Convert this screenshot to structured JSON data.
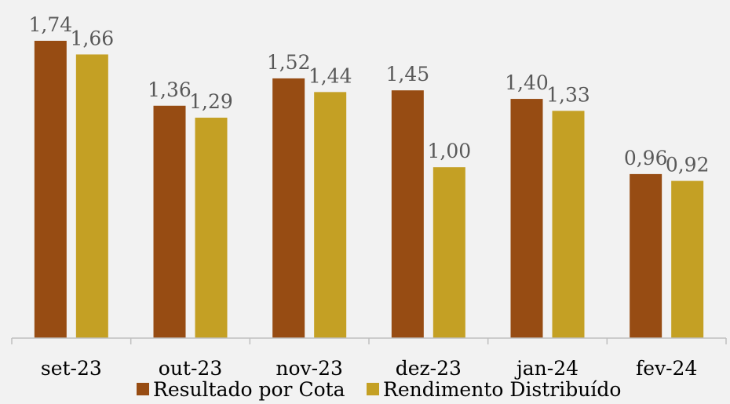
{
  "chart_data": {
    "type": "bar",
    "categories": [
      "set-23",
      "out-23",
      "nov-23",
      "dez-23",
      "jan-24",
      "fev-24"
    ],
    "series": [
      {
        "name": "Resultado por Cota",
        "values": [
          1.74,
          1.36,
          1.52,
          1.45,
          1.4,
          0.96
        ],
        "labels": [
          "1,74",
          "1,36",
          "1,52",
          "1,45",
          "1,40",
          "0,96"
        ],
        "color": "#974c13"
      },
      {
        "name": "Rendimento Distribuído",
        "values": [
          1.66,
          1.29,
          1.44,
          1.0,
          1.33,
          0.92
        ],
        "labels": [
          "1,66",
          "1,29",
          "1,44",
          "1,00",
          "1,33",
          "0,92"
        ],
        "color": "#c4a024"
      }
    ],
    "ylim": [
      0,
      1.74
    ],
    "grid": false,
    "legend": "bottom",
    "title": "",
    "xlabel": "",
    "ylabel": "",
    "colors": {
      "background": "#f2f2f2",
      "axis": "#bfbfbf",
      "label": "#595959"
    }
  }
}
